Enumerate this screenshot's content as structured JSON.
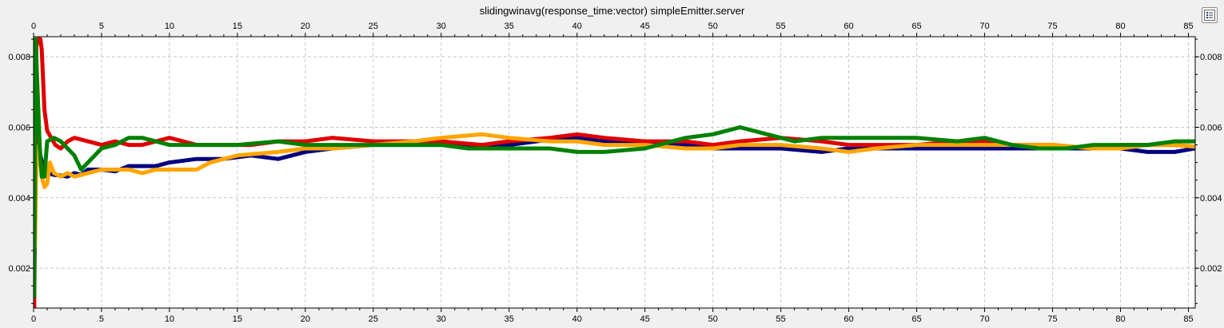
{
  "chart_data": {
    "type": "line",
    "title": "slidingwinavg(response_time:vector) simpleEmitter.server",
    "xlabel": "",
    "ylabel": "",
    "xlim": [
      0,
      85.5
    ],
    "ylim": [
      0.00087,
      0.00857
    ],
    "x_ticks": [
      0,
      5,
      10,
      15,
      20,
      25,
      30,
      35,
      40,
      45,
      50,
      55,
      60,
      65,
      70,
      75,
      80,
      85
    ],
    "y_ticks": [
      0.002,
      0.004,
      0.006,
      0.008
    ],
    "y_tick_labels": [
      "0.002",
      "0.004",
      "0.006",
      "0.008"
    ],
    "grid": true,
    "legend_button_icon": "legend-list-icon",
    "series": [
      {
        "color": "#000080",
        "x": [
          0.05,
          0.15,
          0.3,
          0.5,
          0.7,
          1,
          1.5,
          2,
          2.5,
          3,
          3.5,
          4,
          5,
          6,
          7,
          8,
          9,
          10,
          12,
          14,
          16,
          18,
          20,
          22,
          25,
          28,
          30,
          32,
          35,
          38,
          40,
          42,
          45,
          48,
          50,
          52,
          55,
          58,
          60,
          62,
          65,
          68,
          70,
          72,
          75,
          78,
          80,
          82,
          84,
          85.5
        ],
        "y": [
          0.0016,
          0.0056,
          0.0058,
          0.0052,
          0.0049,
          0.0047,
          0.00465,
          0.00463,
          0.0046,
          0.0047,
          0.00465,
          0.0048,
          0.0048,
          0.00475,
          0.0049,
          0.0049,
          0.0049,
          0.005,
          0.0051,
          0.0051,
          0.0052,
          0.0051,
          0.0053,
          0.0054,
          0.0055,
          0.0055,
          0.0055,
          0.0055,
          0.0055,
          0.00565,
          0.0057,
          0.0056,
          0.0055,
          0.0055,
          0.0054,
          0.0054,
          0.0054,
          0.0053,
          0.0054,
          0.0054,
          0.0054,
          0.0054,
          0.0054,
          0.0054,
          0.0054,
          0.0054,
          0.0054,
          0.0053,
          0.0053,
          0.0054
        ]
      },
      {
        "color": "#e00000",
        "x": [
          0.05,
          0.2,
          0.35,
          0.5,
          0.6,
          0.8,
          1,
          1.3,
          1.6,
          2,
          2.5,
          3,
          4,
          5,
          6,
          7,
          8,
          10,
          12,
          14,
          16,
          18,
          20,
          22,
          25,
          28,
          30,
          33,
          35,
          38,
          40,
          42,
          45,
          48,
          50,
          52,
          55,
          58,
          60,
          62,
          65,
          68,
          70,
          72,
          75,
          78,
          80,
          82,
          84,
          85.5
        ],
        "y": [
          0.0008,
          0.0083,
          0.0085,
          0.0085,
          0.0082,
          0.0065,
          0.0059,
          0.0057,
          0.0055,
          0.0054,
          0.0056,
          0.0057,
          0.0056,
          0.0055,
          0.0056,
          0.0055,
          0.0055,
          0.0057,
          0.0055,
          0.0055,
          0.0055,
          0.0056,
          0.0056,
          0.0057,
          0.0056,
          0.0056,
          0.0056,
          0.0055,
          0.0056,
          0.0057,
          0.0058,
          0.0057,
          0.0056,
          0.0056,
          0.0055,
          0.0056,
          0.0057,
          0.0056,
          0.0055,
          0.0055,
          0.0055,
          0.0056,
          0.0056,
          0.0055,
          0.0055,
          0.0054,
          0.0055,
          0.0055,
          0.0055,
          0.00545
        ]
      },
      {
        "color": "#ffa500",
        "x": [
          0.1,
          0.2,
          0.4,
          0.6,
          0.8,
          1,
          1.2,
          1.5,
          2,
          2.5,
          3,
          4,
          5,
          6,
          7,
          8,
          9,
          10,
          12,
          13,
          15,
          18,
          20,
          22,
          25,
          28,
          30,
          33,
          35,
          38,
          40,
          42,
          45,
          48,
          50,
          52,
          55,
          58,
          60,
          62,
          65,
          68,
          70,
          72,
          75,
          78,
          80,
          82,
          84,
          85.5
        ],
        "y": [
          0.0026,
          0.0048,
          0.0055,
          0.0046,
          0.0043,
          0.0044,
          0.005,
          0.0047,
          0.0046,
          0.0047,
          0.0046,
          0.0047,
          0.0048,
          0.0048,
          0.0048,
          0.0047,
          0.0048,
          0.0048,
          0.0048,
          0.005,
          0.0052,
          0.0053,
          0.0054,
          0.0054,
          0.0055,
          0.0056,
          0.0057,
          0.0058,
          0.0057,
          0.0056,
          0.0056,
          0.0055,
          0.0055,
          0.0054,
          0.0054,
          0.0055,
          0.0055,
          0.0054,
          0.0053,
          0.0054,
          0.0055,
          0.0055,
          0.0055,
          0.0055,
          0.0055,
          0.0054,
          0.0054,
          0.0055,
          0.0055,
          0.00545
        ]
      },
      {
        "color": "#008000",
        "x": [
          0.05,
          0.15,
          0.3,
          0.45,
          0.6,
          0.8,
          1,
          1.5,
          2,
          2.5,
          3,
          3.5,
          4,
          5,
          6,
          7,
          8,
          10,
          12,
          15,
          18,
          20,
          22,
          25,
          28,
          30,
          32,
          35,
          38,
          40,
          42,
          45,
          48,
          50,
          52,
          54,
          56,
          58,
          60,
          62,
          65,
          68,
          70,
          72,
          74,
          76,
          78,
          80,
          82,
          84,
          85.5
        ],
        "y": [
          0.0012,
          0.0085,
          0.007,
          0.0055,
          0.0046,
          0.0046,
          0.0056,
          0.0057,
          0.0056,
          0.0054,
          0.0052,
          0.0048,
          0.005,
          0.0054,
          0.0055,
          0.0057,
          0.0057,
          0.0055,
          0.0055,
          0.0055,
          0.0056,
          0.0055,
          0.0055,
          0.0055,
          0.0055,
          0.0055,
          0.0054,
          0.0054,
          0.0054,
          0.0053,
          0.0053,
          0.0054,
          0.0057,
          0.0058,
          0.006,
          0.0058,
          0.0056,
          0.0057,
          0.0057,
          0.0057,
          0.0057,
          0.0056,
          0.0057,
          0.0055,
          0.0054,
          0.0054,
          0.0055,
          0.0055,
          0.0055,
          0.0056,
          0.0056
        ]
      }
    ]
  }
}
